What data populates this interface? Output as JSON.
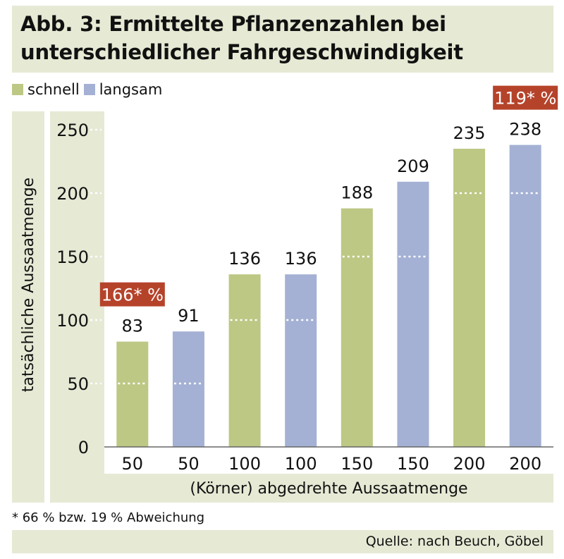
{
  "title": "Abb. 3: Ermittelte Pflanzenzahlen bei unterschiedlicher Fahrgeschwindigkeit",
  "legend": [
    {
      "label": "schnell",
      "color": "#bcc884"
    },
    {
      "label": "langsam",
      "color": "#a4b1d4"
    }
  ],
  "footnote": "* 66 % bzw. 19 % Abweichung",
  "source": "Quelle: nach Beuch, Göbel",
  "chart_data": {
    "type": "bar",
    "title": "Abb. 3: Ermittelte Pflanzenzahlen bei unterschiedlicher Fahrgeschwindigkeit",
    "xlabel": "(Körner) abgedrehte Aussaatmenge",
    "ylabel": "tatsächliche Aussaatmenge",
    "ylim": [
      0,
      250
    ],
    "yticks": [
      0,
      50,
      100,
      150,
      200,
      250
    ],
    "grid": false,
    "legend_position": "top-left",
    "categories": [
      "50",
      "50",
      "100",
      "100",
      "150",
      "150",
      "200",
      "200"
    ],
    "values": [
      83,
      91,
      136,
      136,
      188,
      209,
      235,
      238
    ],
    "series_of_bar": [
      "schnell",
      "langsam",
      "schnell",
      "langsam",
      "schnell",
      "langsam",
      "schnell",
      "langsam"
    ],
    "bar_labels": [
      "83",
      "91",
      "136",
      "136",
      "188",
      "209",
      "235",
      "238"
    ],
    "reference_values": [
      50,
      50,
      100,
      100,
      150,
      150,
      200,
      200
    ],
    "annotations": [
      {
        "bar_index": 0,
        "text": "166* %",
        "color": "#b5432a"
      },
      {
        "bar_index": 7,
        "text": "119* %",
        "color": "#b5432a"
      }
    ]
  }
}
